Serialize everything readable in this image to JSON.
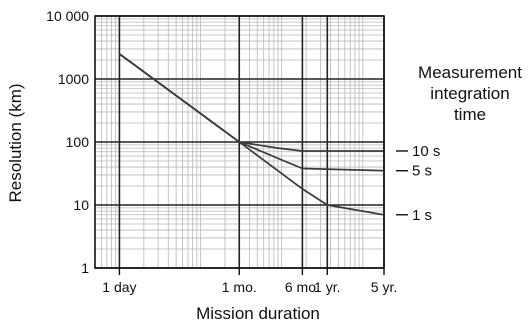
{
  "chart_data": {
    "type": "line",
    "title": "",
    "xlabel": "Mission duration",
    "ylabel": "Resolution (km)",
    "x_scale": "log",
    "y_scale": "log",
    "xlim": [
      0.5,
      1825
    ],
    "ylim": [
      1,
      10000
    ],
    "grid": true,
    "y_ticks": [
      {
        "value": 1,
        "label": "1"
      },
      {
        "value": 10,
        "label": "10"
      },
      {
        "value": 100,
        "label": "100"
      },
      {
        "value": 1000,
        "label": "1000"
      },
      {
        "value": 10000,
        "label": "10 000"
      }
    ],
    "x_ticks": [
      {
        "value": 1,
        "label": "1 day"
      },
      {
        "value": 30,
        "label": "1 mo."
      },
      {
        "value": 180,
        "label": "6 mo."
      },
      {
        "value": 365,
        "label": "1 yr."
      },
      {
        "value": 1825,
        "label": "5 yr."
      }
    ],
    "legend_title": [
      "Measurement",
      "integration",
      "time"
    ],
    "series": [
      {
        "name": "10 s",
        "points": [
          [
            1,
            2500
          ],
          [
            30,
            100
          ],
          [
            90,
            80
          ],
          [
            180,
            72
          ],
          [
            1825,
            72
          ]
        ]
      },
      {
        "name": "5 s",
        "points": [
          [
            1,
            2500
          ],
          [
            30,
            100
          ],
          [
            90,
            55
          ],
          [
            180,
            38
          ],
          [
            1825,
            35
          ]
        ]
      },
      {
        "name": "1 s",
        "points": [
          [
            1,
            2500
          ],
          [
            30,
            100
          ],
          [
            180,
            18
          ],
          [
            365,
            10
          ],
          [
            1825,
            7
          ]
        ]
      }
    ],
    "colors": {
      "axes": "#111111",
      "major_grid": "#222222",
      "minor_grid": "#b8b8b8",
      "lines": "#3a3a3a"
    }
  }
}
